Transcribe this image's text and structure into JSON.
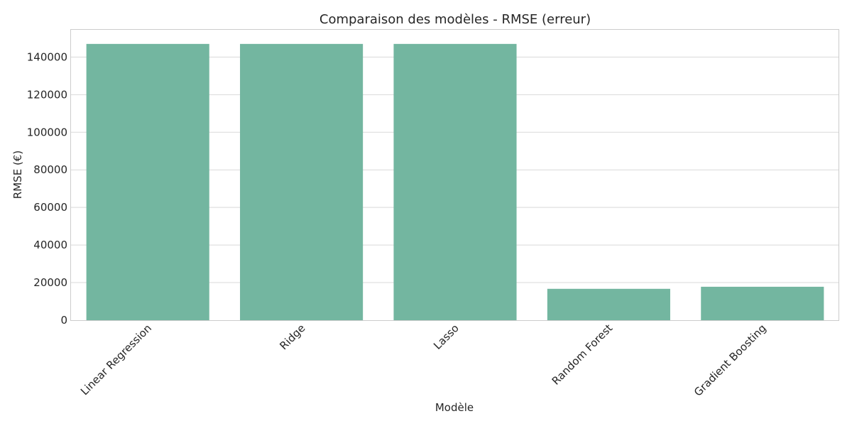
{
  "chart_data": {
    "type": "bar",
    "title": "Comparaison des modèles - RMSE (erreur)",
    "xlabel": "Modèle",
    "ylabel": "RMSE (€)",
    "categories": [
      "Linear Regression",
      "Ridge",
      "Lasso",
      "Random Forest",
      "Gradient Boosting"
    ],
    "values": [
      147000,
      147000,
      147000,
      16700,
      17800
    ],
    "yticks": [
      "0",
      "20000",
      "40000",
      "60000",
      "80000",
      "100000",
      "120000",
      "140000"
    ],
    "ylim": [
      0,
      154500
    ],
    "grid": true,
    "bar_color": "#73b6a0"
  }
}
